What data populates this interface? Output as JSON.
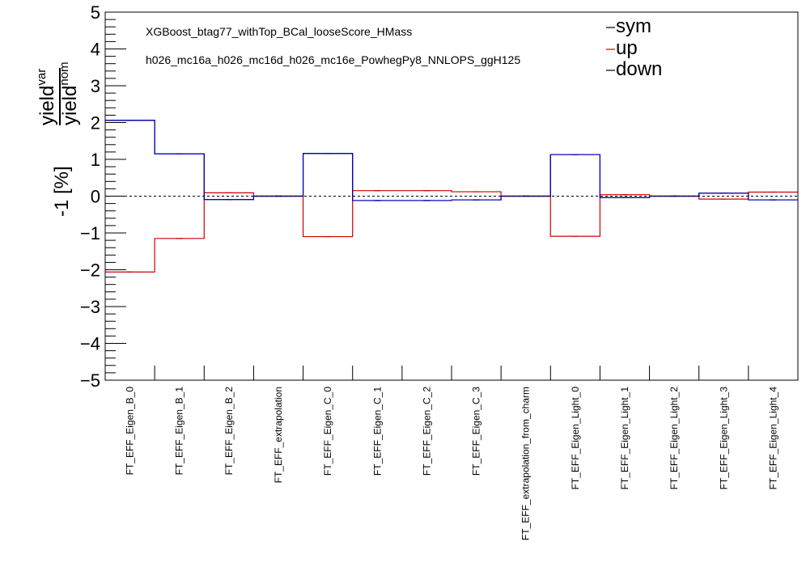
{
  "chart_data": {
    "type": "line",
    "categories": [
      "FT_EFF_Eigen_B_0",
      "FT_EFF_Eigen_B_1",
      "FT_EFF_Eigen_B_2",
      "FT_EFF_extrapolation",
      "FT_EFF_Eigen_C_0",
      "FT_EFF_Eigen_C_1",
      "FT_EFF_Eigen_C_2",
      "FT_EFF_Eigen_C_3",
      "FT_EFF_extrapolation_from_charm",
      "FT_EFF_Eigen_Light_0",
      "FT_EFF_Eigen_Light_1",
      "FT_EFF_Eigen_Light_2",
      "FT_EFF_Eigen_Light_3",
      "FT_EFF_Eigen_Light_4"
    ],
    "series": [
      {
        "name": "sym",
        "color": "#000000",
        "values": [
          2.06,
          1.15,
          -0.09,
          0.0,
          1.16,
          -0.12,
          -0.12,
          -0.1,
          0.0,
          1.13,
          -0.04,
          0.0,
          0.08,
          -0.1
        ]
      },
      {
        "name": "up",
        "color": "#cc0000",
        "values": [
          -2.06,
          -1.15,
          0.09,
          0.0,
          -1.1,
          0.15,
          0.15,
          0.12,
          0.0,
          -1.09,
          0.04,
          0.0,
          -0.08,
          0.11
        ]
      },
      {
        "name": "down",
        "color": "#0000cc",
        "values": [
          2.06,
          1.15,
          -0.09,
          0.0,
          1.16,
          -0.12,
          -0.12,
          -0.1,
          0.0,
          1.13,
          -0.04,
          0.0,
          0.08,
          -0.1
        ]
      }
    ],
    "ylim": [
      -5,
      5
    ],
    "yticks": [
      "5",
      "4",
      "3",
      "2",
      "1",
      "0",
      "−1",
      "−2",
      "−3",
      "−4",
      "−5"
    ],
    "ylabel": {
      "num_base": "yield",
      "num_sup": "var",
      "den_base": "yield",
      "den_sup": "nom",
      "suffix": "-1 [%]"
    },
    "annotations": [
      "XGBoost_btag77_withTop_BCal_looseScore_HMass",
      "h026_mc16a_h026_mc16d_h026_mc16e_PowhegPy8_NNLOPS_ggH125"
    ],
    "legend": [
      "sym",
      "up",
      "down"
    ],
    "legend_position": "top-right",
    "reference_line": 0
  }
}
